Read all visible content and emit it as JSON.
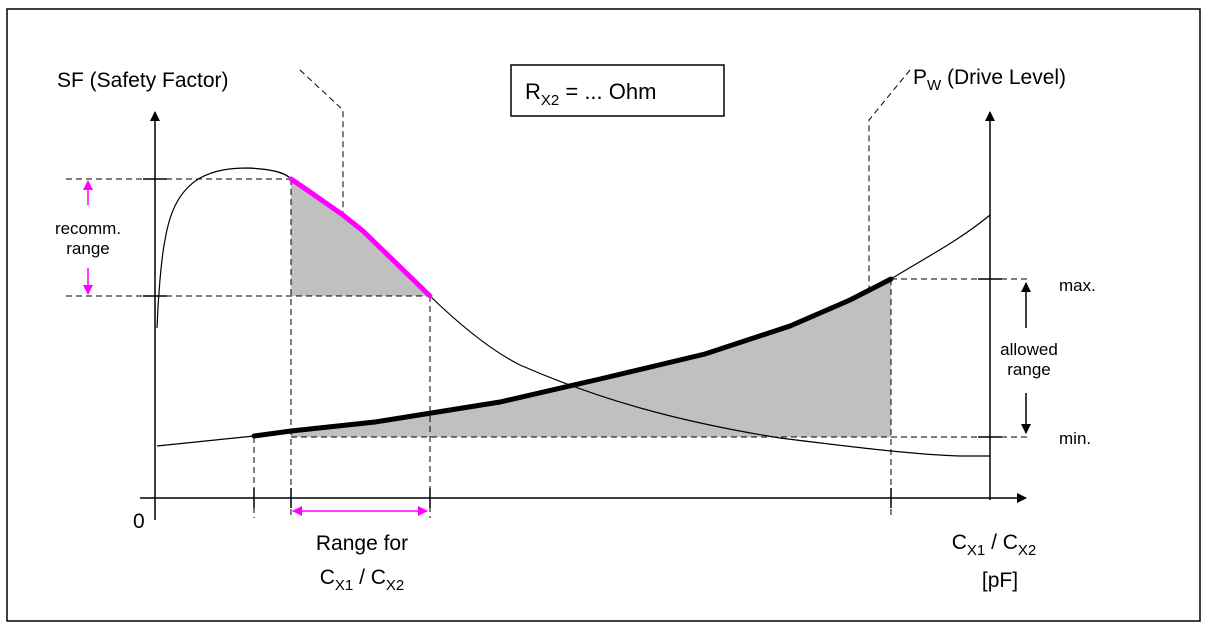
{
  "labels": {
    "sf_axis": "SF (Safety Factor)",
    "pw_prefix": "P",
    "pw_sub": "W",
    "pw_suffix": " (Drive Level)",
    "rx_prefix": "R",
    "rx_sub": "X2",
    "rx_suffix": " = ... Ohm",
    "recomm_line1": "recomm.",
    "recomm_line2": "range",
    "allowed_line1": "allowed",
    "allowed_line2": "range",
    "max": "max.",
    "min": "min.",
    "origin": "0",
    "range_for": "Range for",
    "c_letter": "C",
    "x1_sub": "X1",
    "x2_sub": "X2",
    "slash": " / ",
    "unit_pf": "[pF]"
  },
  "colors": {
    "highlight": "#ff00ff",
    "shade": "#c0c0c0",
    "line": "#000000"
  }
}
